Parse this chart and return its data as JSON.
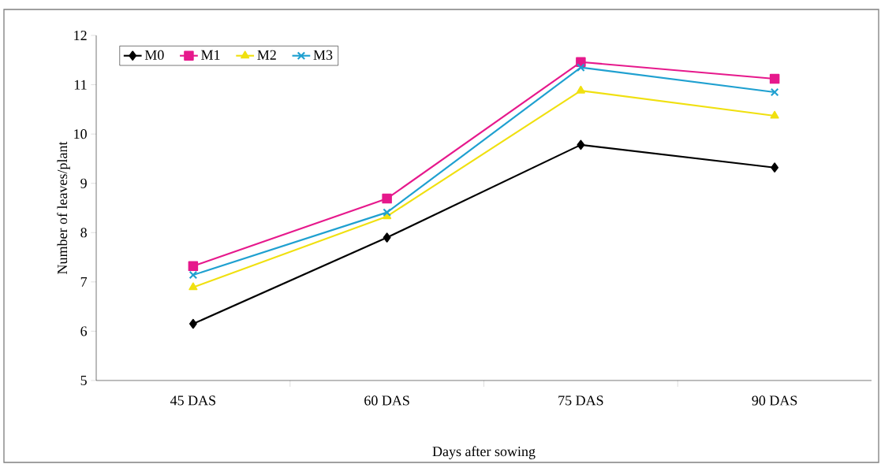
{
  "chart_data": {
    "type": "line",
    "xlabel": "Days after sowing",
    "ylabel": "Number of leaves/plant",
    "categories": [
      "45 DAS",
      "60 DAS",
      "75 DAS",
      "90 DAS"
    ],
    "series": [
      {
        "name": "M0",
        "color": "#000000",
        "marker": "diamond",
        "values": [
          6.15,
          7.9,
          9.78,
          9.32
        ]
      },
      {
        "name": "M1",
        "color": "#e6198c",
        "marker": "square",
        "values": [
          7.32,
          8.69,
          11.46,
          11.12
        ]
      },
      {
        "name": "M2",
        "color": "#f0e010",
        "marker": "triangle",
        "values": [
          6.89,
          8.33,
          10.88,
          10.37
        ]
      },
      {
        "name": "M3",
        "color": "#1fa0d0",
        "marker": "cross",
        "values": [
          7.14,
          8.41,
          11.35,
          10.85
        ]
      }
    ],
    "ylim": [
      5,
      12
    ],
    "yticks": [
      5,
      6,
      7,
      8,
      9,
      10,
      11,
      12
    ],
    "grid": false,
    "legend": "top left",
    "line_style": "solid"
  }
}
